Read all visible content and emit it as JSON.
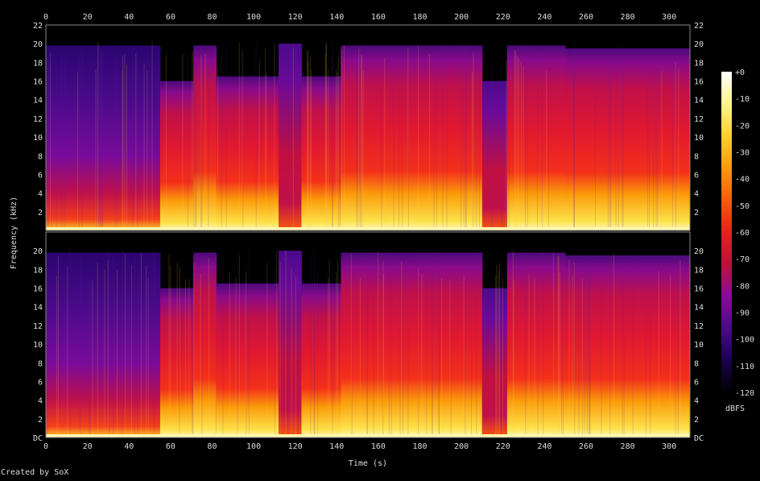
{
  "chart_data": {
    "type": "heatmap",
    "title": "",
    "xlabel": "Time (s)",
    "ylabel": "Frequency (kHz)",
    "xlim": [
      0,
      310
    ],
    "ylim": [
      0,
      22
    ],
    "x_ticks": [
      "0",
      "20",
      "40",
      "60",
      "80",
      "100",
      "120",
      "140",
      "160",
      "180",
      "200",
      "220",
      "240",
      "260",
      "280",
      "300"
    ],
    "channel_top_y_ticks": [
      "2",
      "4",
      "6",
      "8",
      "10",
      "12",
      "14",
      "16",
      "18",
      "20",
      "22"
    ],
    "channel_bottom_y_ticks": [
      "DC",
      "2",
      "4",
      "6",
      "8",
      "10",
      "12",
      "14",
      "16",
      "18",
      "20"
    ],
    "colorbar": {
      "label": "dBFS",
      "ticks": [
        "+0",
        "-10",
        "-20",
        "-30",
        "-40",
        "-50",
        "-60",
        "-70",
        "-80",
        "-90",
        "-100",
        "-110",
        "-120"
      ],
      "range": [
        -120,
        0
      ],
      "colors": [
        "#000000",
        "#1a0050",
        "#4a0a8a",
        "#8a0a9a",
        "#c0103a",
        "#e8201c",
        "#f85a0a",
        "#fb9a0a",
        "#fdd22a",
        "#fff58a",
        "#ffffff"
      ]
    },
    "channels": 2,
    "segments": [
      {
        "start": 0,
        "end": 55,
        "top_khz": 19.8,
        "level": "quiet"
      },
      {
        "start": 55,
        "end": 71,
        "top_khz": 16.0,
        "level": "loud"
      },
      {
        "start": 71,
        "end": 82,
        "top_khz": 19.8,
        "level": "loud"
      },
      {
        "start": 82,
        "end": 112,
        "top_khz": 16.5,
        "level": "loud"
      },
      {
        "start": 112,
        "end": 123,
        "top_khz": 20.0,
        "level": "dip"
      },
      {
        "start": 123,
        "end": 142,
        "top_khz": 16.5,
        "level": "loud"
      },
      {
        "start": 142,
        "end": 210,
        "top_khz": 19.8,
        "level": "loud"
      },
      {
        "start": 210,
        "end": 222,
        "top_khz": 16.0,
        "level": "dip"
      },
      {
        "start": 222,
        "end": 250,
        "top_khz": 19.8,
        "level": "loud"
      },
      {
        "start": 250,
        "end": 310,
        "top_khz": 19.5,
        "level": "loud"
      }
    ],
    "credit": "Created by SoX"
  }
}
